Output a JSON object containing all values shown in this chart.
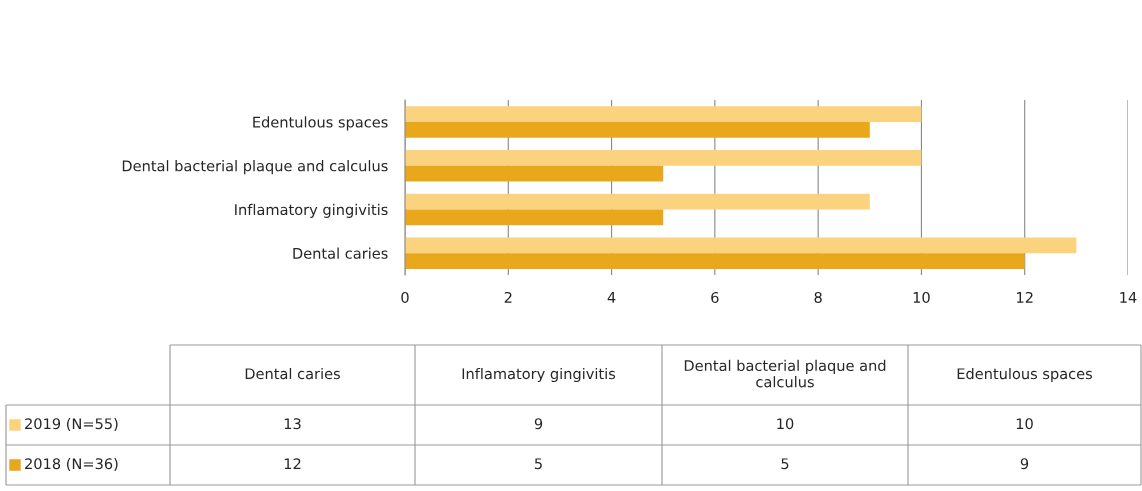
{
  "chart_data": [
    {
      "type": "bar",
      "orientation": "horizontal",
      "categories": [
        "Edentulous spaces",
        "Dental bacterial plaque and calculus",
        "Inflamatory gingivitis",
        "Dental caries"
      ],
      "series": [
        {
          "color": "#fbd27e",
          "values": [
            10,
            10,
            9,
            13
          ]
        },
        {
          "color": "#e9a71c",
          "values": [
            9,
            5,
            5,
            12
          ]
        }
      ],
      "xlim": [
        0,
        14
      ],
      "xticks": [
        0,
        2,
        4,
        6,
        8,
        10,
        12,
        14
      ],
      "grid": "x"
    },
    {
      "type": "heatmap",
      "categories": [
        "Dental caries",
        "Inflamatory gingivitis",
        "Dental bacterial plaque and calculus",
        "Edentulous spaces"
      ],
      "y_categories": [
        "2019 (N=55)",
        "2018 (N=36)"
      ],
      "cells": [
        [
          13,
          9,
          10,
          10
        ],
        [
          12,
          5,
          5,
          9
        ]
      ],
      "data_labels": true
    }
  ]
}
